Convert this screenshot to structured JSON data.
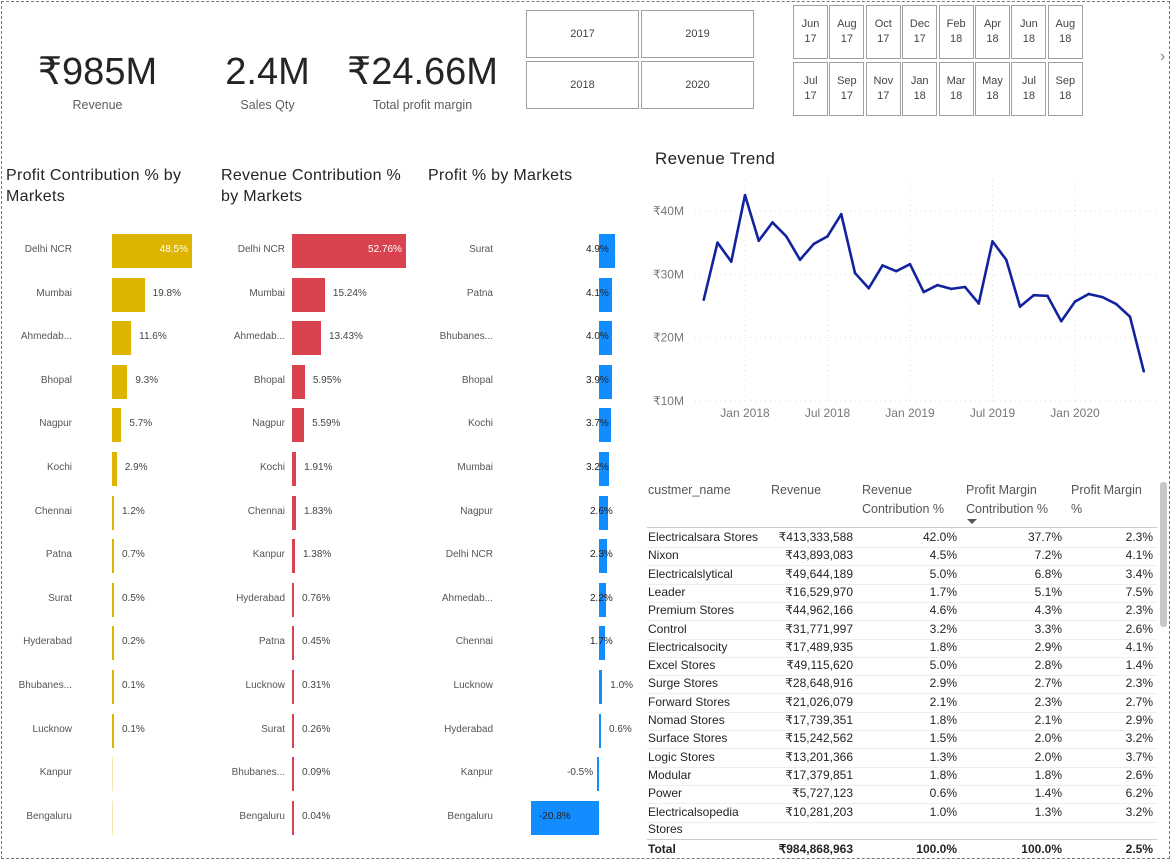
{
  "kpis": [
    {
      "value": "₹985M",
      "label": "Revenue"
    },
    {
      "value": "2.4M",
      "label": "Sales Qty"
    },
    {
      "value": "₹24.66M",
      "label": "Total profit margin"
    }
  ],
  "year_slicer": [
    "2017",
    "2019",
    "2018",
    "2020"
  ],
  "month_slicer": {
    "row1": [
      "Jun\n17",
      "Aug\n17",
      "Oct\n17",
      "Dec\n17",
      "Feb\n18",
      "Apr\n18",
      "Jun\n18",
      "Aug\n18"
    ],
    "row2": [
      "Jul\n17",
      "Sep\n17",
      "Nov\n17",
      "Jan\n18",
      "Mar\n18",
      "May\n18",
      "Jul\n18",
      "Sep\n18"
    ],
    "next_icon": "chevron-right-icon"
  },
  "chart_data": [
    {
      "type": "bar",
      "orientation": "horizontal",
      "title": "Profit Contribution % by Markets",
      "color": "#DDB400",
      "categories": [
        "Delhi NCR",
        "Mumbai",
        "Ahmedab...",
        "Bhopal",
        "Nagpur",
        "Kochi",
        "Chennai",
        "Patna",
        "Surat",
        "Hyderabad",
        "Bhubanes...",
        "Lucknow",
        "Kanpur",
        "Bengaluru"
      ],
      "values": [
        48.5,
        19.8,
        11.6,
        9.3,
        5.7,
        2.9,
        1.2,
        0.7,
        0.5,
        0.2,
        0.1,
        0.1,
        0,
        0
      ],
      "labels": [
        "48.5%",
        "19.8%",
        "11.6%",
        "9.3%",
        "5.7%",
        "2.9%",
        "1.2%",
        "0.7%",
        "0.5%",
        "0.2%",
        "0.1%",
        "0.1%",
        "",
        ""
      ]
    },
    {
      "type": "bar",
      "orientation": "horizontal",
      "title": "Revenue Contribution % by Markets",
      "color": "#D9434F",
      "categories": [
        "Delhi NCR",
        "Mumbai",
        "Ahmedab...",
        "Bhopal",
        "Nagpur",
        "Kochi",
        "Chennai",
        "Kanpur",
        "Hyderabad",
        "Patna",
        "Lucknow",
        "Surat",
        "Bhubanes...",
        "Bengaluru"
      ],
      "values": [
        52.76,
        15.24,
        13.43,
        5.95,
        5.59,
        1.91,
        1.83,
        1.38,
        0.76,
        0.45,
        0.31,
        0.26,
        0.09,
        0.04
      ],
      "labels": [
        "52.76%",
        "15.24%",
        "13.43%",
        "5.95%",
        "5.59%",
        "1.91%",
        "1.83%",
        "1.38%",
        "0.76%",
        "0.45%",
        "0.31%",
        "0.26%",
        "0.09%",
        "0.04%"
      ]
    },
    {
      "type": "bar",
      "orientation": "horizontal",
      "title": "Profit % by Markets",
      "color": "#118DFF",
      "categories": [
        "Surat",
        "Patna",
        "Bhubanes...",
        "Bhopal",
        "Kochi",
        "Mumbai",
        "Nagpur",
        "Delhi NCR",
        "Ahmedab...",
        "Chennai",
        "Lucknow",
        "Hyderabad",
        "Kanpur",
        "Bengaluru"
      ],
      "values": [
        4.9,
        4.1,
        4.0,
        3.9,
        3.7,
        3.2,
        2.6,
        2.3,
        2.2,
        1.7,
        1.0,
        0.6,
        -0.5,
        -20.8
      ],
      "labels": [
        "4.9%",
        "4.1%",
        "4.0%",
        "3.9%",
        "3.7%",
        "3.2%",
        "2.6%",
        "2.3%",
        "2.2%",
        "1.7%",
        "1.0%",
        "0.6%",
        "-0.5%",
        "-20.8%"
      ]
    },
    {
      "type": "line",
      "title": "Revenue Trend",
      "color": "#12239E",
      "grid": true,
      "x": [
        "2017-10",
        "2017-11",
        "2017-12",
        "2018-01",
        "2018-02",
        "2018-03",
        "2018-04",
        "2018-05",
        "2018-06",
        "2018-07",
        "2018-08",
        "2018-09",
        "2018-10",
        "2018-11",
        "2018-12",
        "2019-01",
        "2019-02",
        "2019-03",
        "2019-04",
        "2019-05",
        "2019-06",
        "2019-07",
        "2019-08",
        "2019-09",
        "2019-10",
        "2019-11",
        "2019-12",
        "2020-01",
        "2020-02",
        "2020-03",
        "2020-04",
        "2020-05",
        "2020-06"
      ],
      "y": [
        26.0,
        35.0,
        32.0,
        42.5,
        35.3,
        38.2,
        36.0,
        32.3,
        34.8,
        36.0,
        39.5,
        30.2,
        27.8,
        31.4,
        30.5,
        31.6,
        27.2,
        28.3,
        27.7,
        28.0,
        25.4,
        35.2,
        32.3,
        24.9,
        26.7,
        26.6,
        22.6,
        25.7,
        26.9,
        26.4,
        25.3,
        23.3,
        14.7
      ],
      "y_unit": "₹M",
      "xticks": [
        "Jan 2018",
        "Jul 2018",
        "Jan 2019",
        "Jul 2019",
        "Jan 2020"
      ],
      "yticks": [
        "₹10M",
        "₹20M",
        "₹30M",
        "₹40M"
      ],
      "ylim": [
        10,
        45
      ]
    }
  ],
  "table": {
    "headers": [
      "custmer_name",
      "Revenue",
      "Revenue Contribution %",
      "Profit Margin Contribution %",
      "Profit Margin %"
    ],
    "sort_icon": "sort-descending-icon",
    "rows": [
      [
        "Electricalsara Stores",
        "₹413,333,588",
        "42.0%",
        "37.7%",
        "2.3%"
      ],
      [
        "Nixon",
        "₹43,893,083",
        "4.5%",
        "7.2%",
        "4.1%"
      ],
      [
        "Electricalslytical",
        "₹49,644,189",
        "5.0%",
        "6.8%",
        "3.4%"
      ],
      [
        "Leader",
        "₹16,529,970",
        "1.7%",
        "5.1%",
        "7.5%"
      ],
      [
        "Premium Stores",
        "₹44,962,166",
        "4.6%",
        "4.3%",
        "2.3%"
      ],
      [
        "Control",
        "₹31,771,997",
        "3.2%",
        "3.3%",
        "2.6%"
      ],
      [
        "Electricalsocity",
        "₹17,489,935",
        "1.8%",
        "2.9%",
        "4.1%"
      ],
      [
        "Excel Stores",
        "₹49,115,620",
        "5.0%",
        "2.8%",
        "1.4%"
      ],
      [
        "Surge Stores",
        "₹28,648,916",
        "2.9%",
        "2.7%",
        "2.3%"
      ],
      [
        "Forward Stores",
        "₹21,026,079",
        "2.1%",
        "2.3%",
        "2.7%"
      ],
      [
        "Nomad Stores",
        "₹17,739,351",
        "1.8%",
        "2.1%",
        "2.9%"
      ],
      [
        "Surface Stores",
        "₹15,242,562",
        "1.5%",
        "2.0%",
        "3.2%"
      ],
      [
        "Logic Stores",
        "₹13,201,366",
        "1.3%",
        "2.0%",
        "3.7%"
      ],
      [
        "Modular",
        "₹17,379,851",
        "1.8%",
        "1.8%",
        "2.6%"
      ],
      [
        "Power",
        "₹5,727,123",
        "0.6%",
        "1.4%",
        "6.2%"
      ],
      [
        "Electricalsopedia Stores",
        "₹10,281,203",
        "1.0%",
        "1.3%",
        "3.2%"
      ]
    ],
    "total": [
      "Total",
      "₹984,868,963",
      "100.0%",
      "100.0%",
      "2.5%"
    ]
  }
}
